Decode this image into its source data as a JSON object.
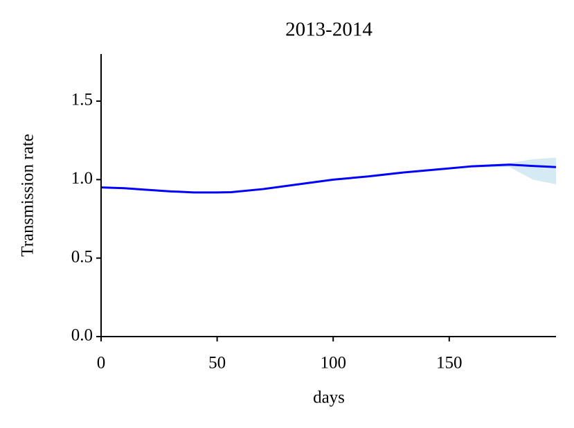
{
  "chart_data": {
    "type": "line",
    "title": "2013-2014",
    "x_label": "days",
    "y_label": "Transmission rate",
    "x": [
      0,
      10,
      20,
      30,
      40,
      50,
      56,
      70,
      85,
      100,
      115,
      130,
      145,
      160,
      176,
      186,
      196
    ],
    "series": [
      {
        "color": "#0000ff",
        "band_color": "#d6eaf3",
        "values": [
          0.95,
          0.945,
          0.935,
          0.925,
          0.918,
          0.918,
          0.92,
          0.94,
          0.97,
          1.0,
          1.02,
          1.045,
          1.065,
          1.085,
          1.095,
          1.087,
          1.08
        ],
        "lower": [
          0.945,
          0.94,
          0.93,
          0.92,
          0.913,
          0.913,
          0.915,
          0.935,
          0.965,
          0.995,
          1.015,
          1.04,
          1.06,
          1.078,
          1.08,
          1.0,
          0.97
        ],
        "upper": [
          0.955,
          0.95,
          0.94,
          0.93,
          0.923,
          0.923,
          0.925,
          0.945,
          0.975,
          1.005,
          1.025,
          1.05,
          1.07,
          1.092,
          1.105,
          1.13,
          1.14
        ]
      }
    ],
    "xlim": [
      0,
      196
    ],
    "ylim": [
      0,
      1.8
    ],
    "xticks": [
      0,
      50,
      100,
      150
    ],
    "yticks": [
      {
        "value": 0,
        "label": "0.0"
      },
      {
        "value": 0.5,
        "label": "0.5"
      },
      {
        "value": 1,
        "label": "1.0"
      },
      {
        "value": 1.5,
        "label": "1.5"
      }
    ]
  }
}
